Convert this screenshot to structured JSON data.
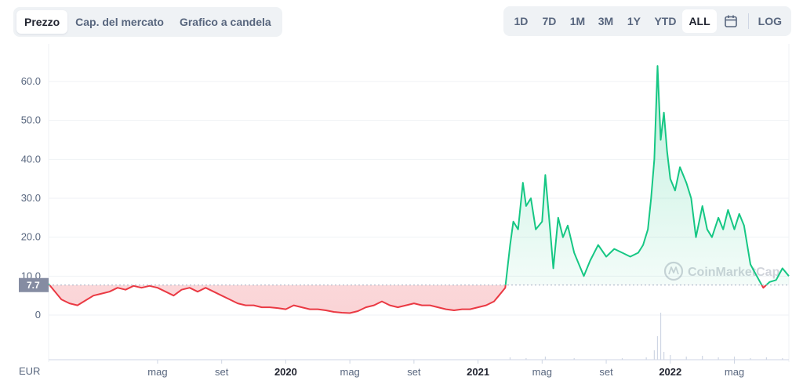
{
  "tabs": [
    {
      "label": "Prezzo",
      "active": true
    },
    {
      "label": "Cap. del mercato",
      "active": false
    },
    {
      "label": "Grafico a candela",
      "active": false
    }
  ],
  "ranges": [
    {
      "label": "1D",
      "active": false
    },
    {
      "label": "7D",
      "active": false
    },
    {
      "label": "1M",
      "active": false
    },
    {
      "label": "3M",
      "active": false
    },
    {
      "label": "1Y",
      "active": false
    },
    {
      "label": "YTD",
      "active": false
    },
    {
      "label": "ALL",
      "active": true
    }
  ],
  "calendar_icon": "calendar-icon",
  "log_label": "LOG",
  "watermark": "CoinMarketCap",
  "colors": {
    "up": "#16c784",
    "down": "#ea3943",
    "grid": "#eff2f5",
    "text": "#58667e",
    "badge": "#858ca2"
  },
  "chart_data": {
    "type": "line",
    "currency": "EUR",
    "reference_price": 7.7,
    "reference_label": "7.7",
    "y_ticks": [
      "0",
      "10.0",
      "20.0",
      "30.0",
      "40.0",
      "50.0",
      "60.0"
    ],
    "y_tick_values": [
      0,
      10,
      20,
      30,
      40,
      50,
      60
    ],
    "ylim": [
      0,
      66
    ],
    "x_ticks": [
      {
        "label": "mag",
        "t": 4,
        "bold": false
      },
      {
        "label": "set",
        "t": 8,
        "bold": false
      },
      {
        "label": "2020",
        "t": 12,
        "bold": true
      },
      {
        "label": "mag",
        "t": 16,
        "bold": false
      },
      {
        "label": "set",
        "t": 20,
        "bold": false
      },
      {
        "label": "2021",
        "t": 24,
        "bold": true
      },
      {
        "label": "mag",
        "t": 28,
        "bold": false
      },
      {
        "label": "set",
        "t": 32,
        "bold": false
      },
      {
        "label": "2022",
        "t": 36,
        "bold": true
      },
      {
        "label": "mag",
        "t": 40,
        "bold": false
      }
    ],
    "xlim": [
      -2.8,
      43.4
    ],
    "x_unit": "months since Jan 2019",
    "series": [
      {
        "x": [
          -2.8,
          -2.5,
          -2.0,
          -1.5,
          -1.0,
          0.0,
          1.0,
          1.5,
          2.0,
          2.5,
          3.0,
          3.5,
          4.0,
          4.5,
          5.0,
          5.5,
          6.0,
          6.5,
          7.0,
          7.5,
          8.0,
          8.5,
          9.0,
          9.5,
          10.0,
          10.5,
          11.0,
          11.5,
          12.0,
          12.5,
          13.0,
          13.5,
          14.0,
          14.5,
          15.0,
          15.5,
          16.0,
          16.5,
          17.0,
          17.5,
          18.0,
          18.5,
          19.0,
          19.5,
          20.0,
          20.5,
          21.0,
          21.5,
          22.0,
          22.5,
          23.0,
          23.5,
          24.0,
          24.5,
          25.0,
          25.3,
          25.7,
          26.0,
          26.2,
          26.5,
          26.8,
          27.0,
          27.3,
          27.6,
          28.0,
          28.2,
          28.5,
          28.7,
          29.0,
          29.3,
          29.6,
          30.0,
          30.3,
          30.6,
          31.0,
          31.5,
          32.0,
          32.5,
          33.0,
          33.5,
          34.0,
          34.3,
          34.6,
          34.8,
          35.0,
          35.2,
          35.4,
          35.6,
          35.8,
          36.0,
          36.3,
          36.6,
          37.0,
          37.3,
          37.6,
          38.0,
          38.3,
          38.6,
          39.0,
          39.3,
          39.6,
          40.0,
          40.3,
          40.6,
          41.0,
          41.4,
          41.8,
          42.2,
          42.6,
          43.0,
          43.4
        ],
        "y": [
          8.0,
          6.5,
          4.0,
          3.0,
          2.5,
          5.0,
          6.0,
          7.0,
          6.5,
          7.5,
          7.0,
          7.5,
          7.0,
          6.0,
          5.0,
          6.5,
          7.0,
          6.0,
          7.0,
          6.0,
          5.0,
          4.0,
          3.0,
          2.5,
          2.5,
          2.0,
          2.0,
          1.8,
          1.5,
          2.5,
          2.0,
          1.5,
          1.5,
          1.2,
          0.8,
          0.6,
          0.5,
          1.0,
          2.0,
          2.5,
          3.5,
          2.5,
          2.0,
          2.5,
          3.0,
          2.5,
          2.5,
          2.0,
          1.5,
          1.2,
          1.5,
          1.5,
          2.0,
          2.5,
          3.5,
          5.0,
          7.0,
          18.0,
          24.0,
          22.0,
          34.0,
          28.0,
          30.0,
          22.0,
          24.0,
          36.0,
          22.0,
          12.0,
          25.0,
          20.0,
          23.0,
          16.0,
          13.0,
          10.0,
          14.0,
          18.0,
          15.0,
          17.0,
          16.0,
          15.0,
          16.0,
          18.0,
          22.0,
          30.0,
          40.0,
          64.0,
          45.0,
          52.0,
          42.0,
          35.0,
          32.0,
          38.0,
          34.0,
          30.0,
          20.0,
          28.0,
          22.0,
          20.0,
          25.0,
          22.0,
          27.0,
          22.0,
          26.0,
          23.0,
          13.0,
          10.0,
          7.0,
          8.5,
          9.0,
          12.0,
          10.0
        ]
      }
    ],
    "volume": {
      "x": [
        26.0,
        27.0,
        28.2,
        30.0,
        33.0,
        34.5,
        35.0,
        35.2,
        35.4,
        35.6,
        36.0,
        37.0,
        38.0,
        39.0,
        40.0,
        41.0,
        42.0,
        43.0
      ],
      "v": [
        3,
        2,
        4,
        2,
        2,
        3,
        12,
        30,
        60,
        10,
        6,
        4,
        5,
        3,
        4,
        2,
        3,
        2
      ]
    }
  }
}
